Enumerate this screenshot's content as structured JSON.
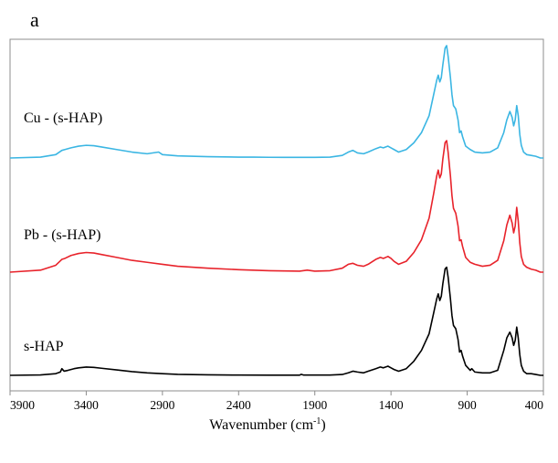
{
  "panel_label": "a",
  "chart_data": {
    "type": "line",
    "xlabel": "Wavenumber (cm",
    "xlabel_superscript": "-1",
    "xlabel_suffix": ")",
    "ylabel": "",
    "xlim": [
      3900,
      400
    ],
    "x_reversed": true,
    "x_ticks": [
      3900,
      3400,
      2900,
      2400,
      1900,
      1400,
      900,
      400
    ],
    "y_ticks_shown": false,
    "grid": false,
    "colors": {
      "cu": "#3bb6e3",
      "pb": "#e8232b",
      "shap": "#000000",
      "frame": "#8c8c8c"
    },
    "series": [
      {
        "name": "Cu -  (s-HAP)",
        "color": "#3bb6e3",
        "offset": 2,
        "x": [
          3900,
          3700,
          3600,
          3560,
          3540,
          3500,
          3450,
          3400,
          3350,
          3300,
          3200,
          3100,
          3000,
          2925,
          2900,
          2800,
          2600,
          2400,
          2300,
          2200,
          2100,
          2000,
          1900,
          1800,
          1720,
          1680,
          1650,
          1620,
          1580,
          1550,
          1500,
          1470,
          1450,
          1420,
          1400,
          1380,
          1350,
          1300,
          1250,
          1200,
          1150,
          1120,
          1100,
          1090,
          1080,
          1070,
          1060,
          1045,
          1035,
          1025,
          1010,
          1000,
          990,
          975,
          960,
          950,
          940,
          930,
          910,
          880,
          850,
          800,
          750,
          700,
          660,
          640,
          620,
          605,
          595,
          585,
          575,
          565,
          555,
          545,
          530,
          510,
          480,
          450,
          420,
          400
        ],
        "y": [
          0.0,
          0.01,
          0.04,
          0.09,
          0.1,
          0.12,
          0.14,
          0.15,
          0.145,
          0.13,
          0.1,
          0.07,
          0.05,
          0.07,
          0.04,
          0.025,
          0.015,
          0.01,
          0.01,
          0.008,
          0.007,
          0.007,
          0.007,
          0.01,
          0.03,
          0.07,
          0.09,
          0.06,
          0.05,
          0.07,
          0.11,
          0.13,
          0.12,
          0.14,
          0.12,
          0.1,
          0.07,
          0.1,
          0.18,
          0.3,
          0.5,
          0.75,
          0.92,
          0.98,
          0.9,
          0.95,
          1.1,
          1.3,
          1.33,
          1.2,
          0.95,
          0.75,
          0.62,
          0.58,
          0.45,
          0.3,
          0.32,
          0.25,
          0.14,
          0.1,
          0.07,
          0.06,
          0.07,
          0.12,
          0.3,
          0.45,
          0.55,
          0.48,
          0.38,
          0.45,
          0.62,
          0.5,
          0.28,
          0.15,
          0.07,
          0.04,
          0.03,
          0.02,
          0.0,
          0.0
        ]
      },
      {
        "name": "Pb -  (s-HAP)",
        "color": "#e8232b",
        "offset": 1,
        "x": [
          3900,
          3700,
          3600,
          3560,
          3540,
          3500,
          3450,
          3400,
          3350,
          3300,
          3200,
          3100,
          3000,
          2900,
          2800,
          2600,
          2400,
          2200,
          2000,
          1950,
          1900,
          1800,
          1720,
          1680,
          1650,
          1620,
          1580,
          1550,
          1500,
          1470,
          1450,
          1420,
          1400,
          1380,
          1350,
          1300,
          1250,
          1200,
          1150,
          1120,
          1100,
          1090,
          1080,
          1070,
          1060,
          1045,
          1035,
          1025,
          1010,
          1000,
          990,
          975,
          960,
          950,
          940,
          930,
          910,
          880,
          850,
          800,
          750,
          700,
          660,
          640,
          620,
          605,
          595,
          585,
          575,
          565,
          555,
          545,
          530,
          510,
          480,
          450,
          420,
          400
        ],
        "y": [
          0.0,
          0.02,
          0.07,
          0.13,
          0.14,
          0.17,
          0.19,
          0.2,
          0.195,
          0.18,
          0.15,
          0.12,
          0.1,
          0.08,
          0.06,
          0.04,
          0.025,
          0.015,
          0.01,
          0.02,
          0.01,
          0.015,
          0.04,
          0.08,
          0.09,
          0.07,
          0.06,
          0.08,
          0.13,
          0.15,
          0.14,
          0.16,
          0.14,
          0.11,
          0.08,
          0.11,
          0.2,
          0.33,
          0.55,
          0.8,
          0.98,
          1.04,
          0.96,
          1.0,
          1.15,
          1.32,
          1.34,
          1.22,
          0.98,
          0.78,
          0.65,
          0.6,
          0.47,
          0.32,
          0.33,
          0.26,
          0.15,
          0.1,
          0.08,
          0.06,
          0.07,
          0.12,
          0.32,
          0.48,
          0.58,
          0.5,
          0.4,
          0.47,
          0.66,
          0.52,
          0.3,
          0.16,
          0.08,
          0.05,
          0.03,
          0.02,
          0.0,
          0.0
        ]
      },
      {
        "name": "s-HAP",
        "color": "#000000",
        "offset": 0,
        "x": [
          3900,
          3700,
          3600,
          3570,
          3560,
          3545,
          3520,
          3480,
          3450,
          3400,
          3350,
          3300,
          3200,
          3100,
          3000,
          2900,
          2800,
          2600,
          2400,
          2200,
          2000,
          1990,
          1975,
          1900,
          1800,
          1720,
          1680,
          1650,
          1620,
          1580,
          1550,
          1500,
          1470,
          1450,
          1420,
          1400,
          1380,
          1350,
          1300,
          1250,
          1200,
          1150,
          1120,
          1100,
          1090,
          1080,
          1070,
          1060,
          1045,
          1035,
          1025,
          1010,
          1000,
          990,
          975,
          960,
          950,
          940,
          930,
          910,
          880,
          870,
          850,
          800,
          750,
          700,
          660,
          640,
          620,
          605,
          595,
          585,
          575,
          565,
          555,
          545,
          530,
          510,
          480,
          450,
          420,
          400
        ],
        "y": [
          0.0,
          0.005,
          0.02,
          0.04,
          0.08,
          0.05,
          0.06,
          0.08,
          0.09,
          0.1,
          0.095,
          0.085,
          0.065,
          0.045,
          0.03,
          0.02,
          0.012,
          0.006,
          0.003,
          0.002,
          0.002,
          0.012,
          0.004,
          0.003,
          0.004,
          0.01,
          0.03,
          0.05,
          0.04,
          0.03,
          0.05,
          0.08,
          0.1,
          0.09,
          0.11,
          0.09,
          0.07,
          0.05,
          0.08,
          0.17,
          0.3,
          0.5,
          0.75,
          0.92,
          0.98,
          0.9,
          0.95,
          1.1,
          1.28,
          1.3,
          1.18,
          0.92,
          0.72,
          0.6,
          0.56,
          0.43,
          0.28,
          0.3,
          0.23,
          0.12,
          0.06,
          0.08,
          0.04,
          0.03,
          0.03,
          0.06,
          0.3,
          0.45,
          0.52,
          0.45,
          0.36,
          0.42,
          0.58,
          0.45,
          0.25,
          0.12,
          0.05,
          0.02,
          0.02,
          0.01,
          0.0,
          0.0
        ]
      }
    ]
  }
}
